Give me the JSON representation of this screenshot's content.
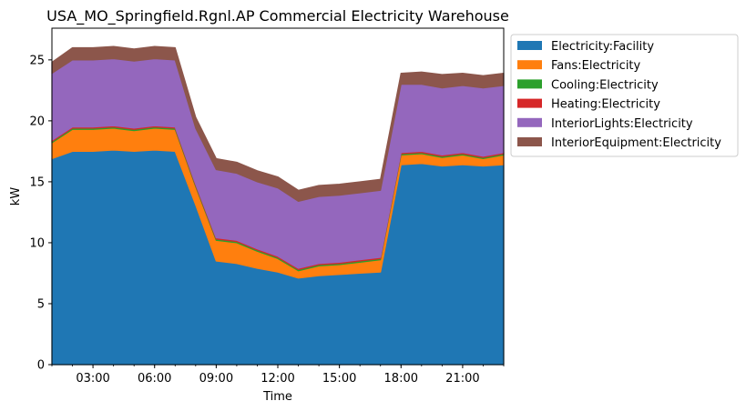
{
  "chart_data": {
    "type": "area",
    "stacked": true,
    "title": "USA_MO_Springfield.Rgnl.AP Commercial Electricity Warehouse",
    "xlabel": "Time",
    "ylabel": "kW",
    "x": [
      "01:00",
      "02:00",
      "03:00",
      "04:00",
      "05:00",
      "06:00",
      "07:00",
      "08:00",
      "09:00",
      "10:00",
      "11:00",
      "12:00",
      "13:00",
      "14:00",
      "15:00",
      "16:00",
      "17:00",
      "18:00",
      "19:00",
      "20:00",
      "21:00",
      "22:00",
      "23:00"
    ],
    "xlim": [
      "01:00",
      "23:00"
    ],
    "xticks": [
      "03:00",
      "06:00",
      "09:00",
      "12:00",
      "15:00",
      "18:00",
      "21:00"
    ],
    "ylim": [
      0,
      27.6
    ],
    "yticks": [
      0,
      5,
      10,
      15,
      20,
      25
    ],
    "grid": false,
    "legend_position": "outside-top-right",
    "series": [
      {
        "name": "Electricity:Facility",
        "color": "#1f77b4",
        "values": [
          16.9,
          17.5,
          17.5,
          17.6,
          17.5,
          17.6,
          17.5,
          13.1,
          8.5,
          8.3,
          7.9,
          7.6,
          7.1,
          7.3,
          7.4,
          7.5,
          7.6,
          16.4,
          16.5,
          16.3,
          16.4,
          16.3,
          16.4
        ]
      },
      {
        "name": "Fans:Electricity",
        "color": "#ff7f0e",
        "values": [
          1.3,
          1.8,
          1.8,
          1.8,
          1.7,
          1.8,
          1.8,
          1.5,
          1.7,
          1.7,
          1.4,
          1.1,
          0.6,
          0.8,
          0.8,
          0.9,
          1.0,
          0.8,
          0.8,
          0.7,
          0.8,
          0.6,
          0.8
        ]
      },
      {
        "name": "Cooling:Electricity",
        "color": "#2ca02c",
        "values": [
          0.1,
          0.1,
          0.1,
          0.1,
          0.1,
          0.1,
          0.1,
          0.1,
          0.1,
          0.1,
          0.1,
          0.1,
          0.1,
          0.1,
          0.1,
          0.1,
          0.1,
          0.1,
          0.1,
          0.1,
          0.1,
          0.1,
          0.1
        ]
      },
      {
        "name": "Heating:Electricity",
        "color": "#d62728",
        "values": [
          0.1,
          0.1,
          0.1,
          0.1,
          0.1,
          0.1,
          0.1,
          0.1,
          0.1,
          0.1,
          0.1,
          0.1,
          0.1,
          0.1,
          0.1,
          0.1,
          0.1,
          0.1,
          0.1,
          0.1,
          0.1,
          0.1,
          0.1
        ]
      },
      {
        "name": "InteriorLights:Electricity",
        "color": "#9467bd",
        "values": [
          5.5,
          5.5,
          5.5,
          5.5,
          5.5,
          5.5,
          5.5,
          4.6,
          5.6,
          5.5,
          5.5,
          5.6,
          5.5,
          5.5,
          5.5,
          5.5,
          5.5,
          5.6,
          5.5,
          5.5,
          5.5,
          5.6,
          5.5
        ]
      },
      {
        "name": "InteriorEquipment:Electricity",
        "color": "#8c564b",
        "values": [
          0.9,
          1.0,
          1.0,
          1.0,
          1.0,
          1.0,
          1.0,
          0.9,
          0.9,
          0.9,
          0.9,
          0.9,
          0.9,
          0.9,
          0.9,
          0.9,
          0.9,
          0.9,
          1.0,
          1.1,
          1.0,
          1.0,
          1.0
        ]
      }
    ]
  }
}
